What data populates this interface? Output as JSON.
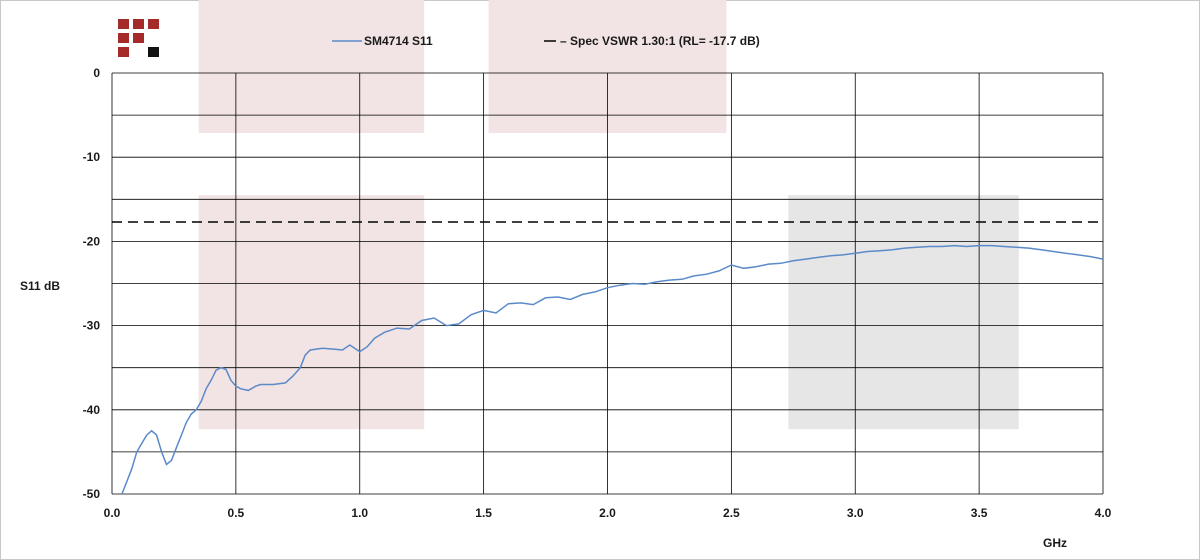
{
  "chart_data": {
    "type": "line",
    "xlabel": "GHz",
    "ylabel": "S11 dB",
    "xlim": [
      0,
      4
    ],
    "ylim": [
      -50,
      0
    ],
    "x_ticks": [
      "0.0",
      "0.5",
      "1.0",
      "1.5",
      "2.0",
      "2.5",
      "3.0",
      "3.5",
      "4.0"
    ],
    "y_ticks": [
      "0",
      "-10",
      "-20",
      "-30",
      "-40",
      "-50"
    ],
    "grid": true,
    "legend_position": "top",
    "series": [
      {
        "name": "SM4714 S11",
        "color": "#5b8ac9",
        "style": "solid",
        "x": [
          0.04,
          0.06,
          0.08,
          0.1,
          0.12,
          0.14,
          0.16,
          0.18,
          0.2,
          0.22,
          0.24,
          0.26,
          0.28,
          0.3,
          0.32,
          0.34,
          0.36,
          0.38,
          0.4,
          0.42,
          0.44,
          0.46,
          0.48,
          0.5,
          0.52,
          0.55,
          0.58,
          0.6,
          0.65,
          0.7,
          0.73,
          0.76,
          0.78,
          0.8,
          0.85,
          0.9,
          0.93,
          0.96,
          1.0,
          1.03,
          1.06,
          1.1,
          1.15,
          1.2,
          1.25,
          1.3,
          1.35,
          1.4,
          1.45,
          1.5,
          1.55,
          1.6,
          1.65,
          1.7,
          1.75,
          1.8,
          1.85,
          1.9,
          1.95,
          2.0,
          2.05,
          2.1,
          2.15,
          2.2,
          2.25,
          2.3,
          2.35,
          2.4,
          2.45,
          2.5,
          2.55,
          2.6,
          2.65,
          2.7,
          2.75,
          2.8,
          2.85,
          2.9,
          2.95,
          3.0,
          3.05,
          3.1,
          3.15,
          3.2,
          3.25,
          3.3,
          3.35,
          3.4,
          3.45,
          3.5,
          3.55,
          3.6,
          3.65,
          3.7,
          3.75,
          3.8,
          3.85,
          3.9,
          3.95,
          4.0
        ],
        "values": [
          -50,
          -48.5,
          -47,
          -45,
          -44,
          -43,
          -42.5,
          -43,
          -45,
          -46.5,
          -46,
          -44.5,
          -43,
          -41.5,
          -40.5,
          -40,
          -39,
          -37.5,
          -36.5,
          -35.3,
          -35,
          -35.2,
          -36.5,
          -37.2,
          -37.5,
          -37.7,
          -37.2,
          -37,
          -37,
          -36.8,
          -36,
          -35,
          -33.5,
          -32.9,
          -32.7,
          -32.8,
          -32.9,
          -32.3,
          -33.1,
          -32.5,
          -31.5,
          -30.8,
          -30.3,
          -30.4,
          -29.4,
          -29.1,
          -30,
          -29.8,
          -28.7,
          -28.2,
          -28.5,
          -27.4,
          -27.3,
          -27.5,
          -26.7,
          -26.6,
          -26.9,
          -26.3,
          -26,
          -25.5,
          -25.2,
          -25,
          -25.1,
          -24.8,
          -24.6,
          -24.5,
          -24.1,
          -23.9,
          -23.5,
          -22.8,
          -23.2,
          -23.0,
          -22.7,
          -22.6,
          -22.3,
          -22.1,
          -21.9,
          -21.7,
          -21.6,
          -21.4,
          -21.2,
          -21.1,
          -21.0,
          -20.8,
          -20.7,
          -20.6,
          -20.6,
          -20.5,
          -20.6,
          -20.5,
          -20.5,
          -20.6,
          -20.7,
          -20.8,
          -21.0,
          -21.2,
          -21.4,
          -21.6,
          -21.8,
          -22.1
        ]
      },
      {
        "name": "Spec VSWR 1.30:1 (RL= -17.7 dB)",
        "legend_label": "– Spec VSWR 1.30:1 (RL= -17.7 dB)",
        "color": "#000000",
        "style": "dashed",
        "x": [
          0,
          4
        ],
        "values": [
          -17.7,
          -17.7
        ]
      }
    ],
    "bands": [
      {
        "x": [
          0.35,
          1.26
        ],
        "y": [
          -42.3,
          -14.5
        ],
        "color": "#f2e4e4"
      },
      {
        "x": [
          2.73,
          3.66
        ],
        "y": [
          -42.3,
          -14.5
        ],
        "color": "#e6e6e6"
      }
    ],
    "top_bands": [
      {
        "x": [
          0.35,
          1.26
        ],
        "color": "#f2e4e4"
      },
      {
        "x": [
          1.52,
          2.48
        ],
        "color": "#f2e4e4"
      }
    ]
  },
  "logo": {
    "colors": [
      "#a52a2a",
      "#111111"
    ]
  }
}
